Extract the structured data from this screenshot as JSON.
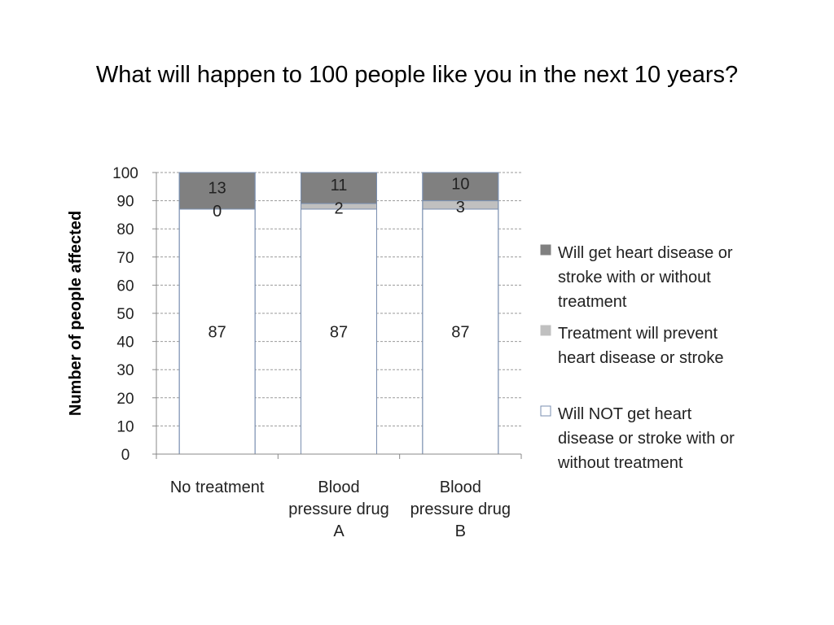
{
  "slide": {
    "title": "What will happen to 100 people like you in the next 10 years?"
  },
  "chart_data": {
    "type": "bar",
    "stacked": true,
    "title": "",
    "ylabel": "Number of people affected",
    "xlabel": "",
    "ylim": [
      0,
      100
    ],
    "yticks": [
      0,
      10,
      20,
      30,
      40,
      50,
      60,
      70,
      80,
      90,
      100
    ],
    "grid": true,
    "legend_position": "right",
    "categories": [
      [
        "No treatment"
      ],
      [
        "Blood",
        "pressure drug",
        "A"
      ],
      [
        "Blood",
        "pressure drug",
        "B"
      ]
    ],
    "series": [
      {
        "name": "Will NOT get heart disease or stroke with or without treatment",
        "legend_lines": [
          "Will NOT get heart",
          "disease or stroke with or",
          "without treatment"
        ],
        "color": "#ffffff",
        "values": [
          87,
          87,
          87
        ]
      },
      {
        "name": "Treatment will prevent heart disease or stroke",
        "legend_lines": [
          "Treatment will prevent",
          "heart disease or stroke"
        ],
        "color": "#c0c0c0",
        "values": [
          0,
          2,
          3
        ]
      },
      {
        "name": "Will get heart disease or stroke with or without treatment",
        "legend_lines": [
          "Will get heart disease or",
          "stroke with or without",
          "treatment"
        ],
        "color": "#808080",
        "values": [
          13,
          11,
          10
        ]
      }
    ]
  }
}
